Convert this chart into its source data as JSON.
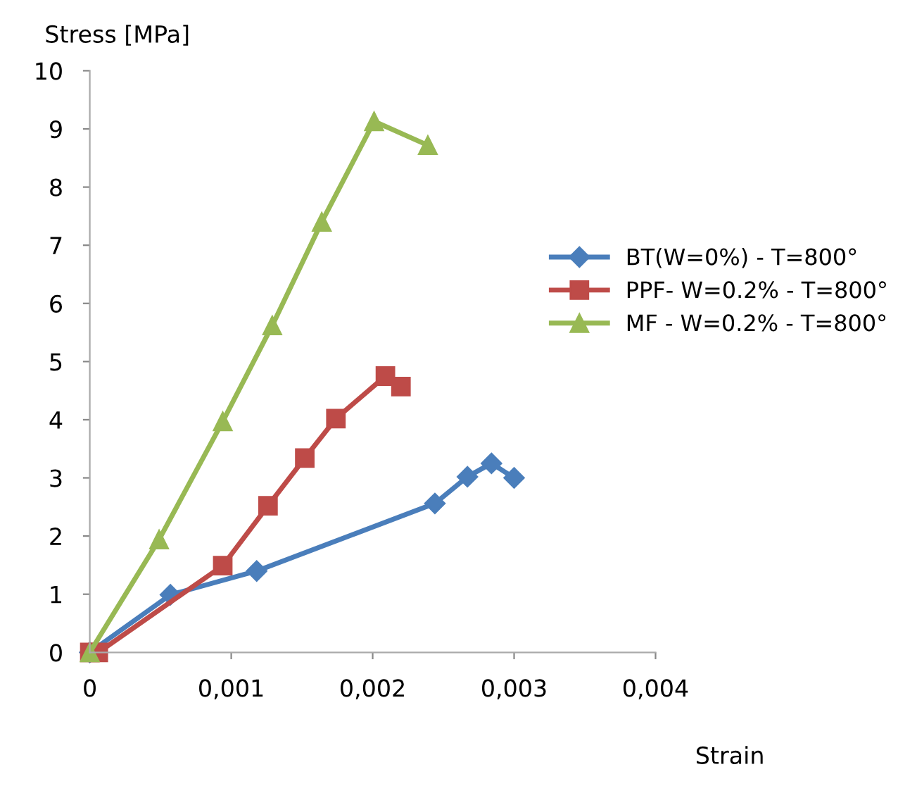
{
  "chart_data": {
    "type": "line",
    "xlabel": "Strain",
    "ylabel": "Stress [MPa]",
    "xlim": [
      0,
      0.004
    ],
    "xticks": [
      {
        "value": 0,
        "label": "0"
      },
      {
        "value": 0.001,
        "label": "0,001"
      },
      {
        "value": 0.002,
        "label": "0,002"
      },
      {
        "value": 0.003,
        "label": "0,003"
      },
      {
        "value": 0.004,
        "label": "0,004"
      }
    ],
    "ylim": [
      0,
      10
    ],
    "yticks": [
      0,
      1,
      2,
      3,
      4,
      5,
      6,
      7,
      8,
      9,
      10
    ],
    "grid": false,
    "legend": "right",
    "series": [
      {
        "name": "BT(W=0%) - T=800°",
        "color": "#4a7ebb",
        "marker": "diamond",
        "x": [
          0,
          0.00057,
          0.00118,
          0.00244,
          0.00267,
          0.00284,
          0.003
        ],
        "values": [
          0,
          0.99,
          1.4,
          2.56,
          3.02,
          3.25,
          3.0
        ]
      },
      {
        "name": "PPF- W=0.2% - T=800°",
        "color": "#be4b48",
        "marker": "square",
        "x": [
          0,
          6e-05,
          0.00094,
          0.00126,
          0.00152,
          0.00174,
          0.00209,
          0.0022
        ],
        "values": [
          0,
          0,
          1.49,
          2.52,
          3.34,
          4.02,
          4.75,
          4.57
        ]
      },
      {
        "name": "MF - W=0.2% - T=800°",
        "color": "#98b954",
        "marker": "triangle",
        "x": [
          0,
          0.00049,
          0.00094,
          0.00129,
          0.00164,
          0.00201,
          0.00239
        ],
        "values": [
          0,
          1.94,
          3.97,
          5.62,
          7.4,
          9.13,
          8.72
        ]
      }
    ]
  }
}
